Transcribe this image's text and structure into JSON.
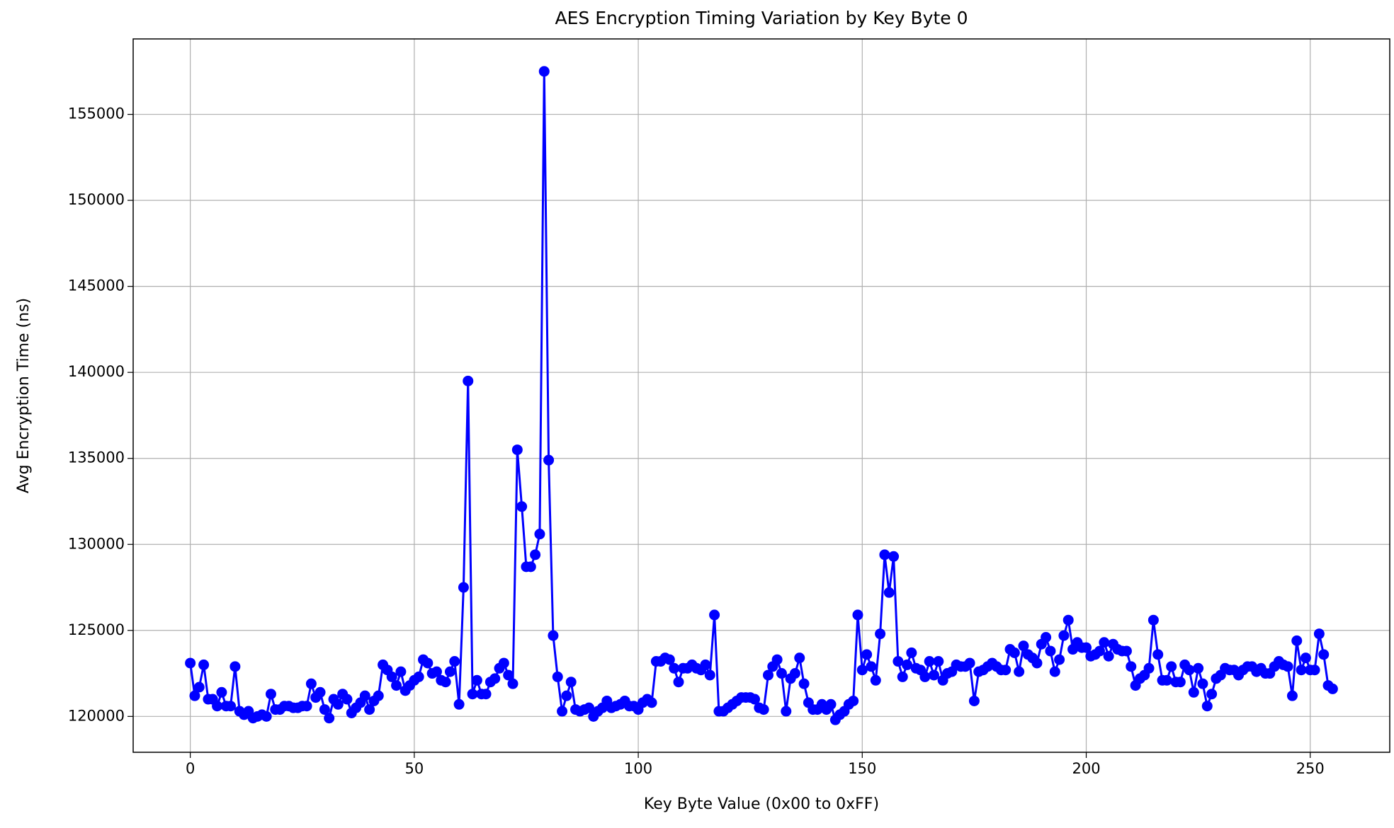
{
  "chart_data": {
    "type": "line",
    "title": "AES Encryption Timing Variation by Key Byte 0",
    "x_label": "Key Byte Value (0x00 to 0xFF)",
    "y_label": "Avg Encryption Time (ns)",
    "x": [
      0,
      1,
      2,
      3,
      4,
      5,
      6,
      7,
      8,
      9,
      10,
      11,
      12,
      13,
      14,
      15,
      16,
      17,
      18,
      19,
      20,
      21,
      22,
      23,
      24,
      25,
      26,
      27,
      28,
      29,
      30,
      31,
      32,
      33,
      34,
      35,
      36,
      37,
      38,
      39,
      40,
      41,
      42,
      43,
      44,
      45,
      46,
      47,
      48,
      49,
      50,
      51,
      52,
      53,
      54,
      55,
      56,
      57,
      58,
      59,
      60,
      61,
      62,
      63,
      64,
      65,
      66,
      67,
      68,
      69,
      70,
      71,
      72,
      73,
      74,
      75,
      76,
      77,
      78,
      79,
      80,
      81,
      82,
      83,
      84,
      85,
      86,
      87,
      88,
      89,
      90,
      91,
      92,
      93,
      94,
      95,
      96,
      97,
      98,
      99,
      100,
      101,
      102,
      103,
      104,
      105,
      106,
      107,
      108,
      109,
      110,
      111,
      112,
      113,
      114,
      115,
      116,
      117,
      118,
      119,
      120,
      121,
      122,
      123,
      124,
      125,
      126,
      127,
      128,
      129,
      130,
      131,
      132,
      133,
      134,
      135,
      136,
      137,
      138,
      139,
      140,
      141,
      142,
      143,
      144,
      145,
      146,
      147,
      148,
      149,
      150,
      151,
      152,
      153,
      154,
      155,
      156,
      157,
      158,
      159,
      160,
      161,
      162,
      163,
      164,
      165,
      166,
      167,
      168,
      169,
      170,
      171,
      172,
      173,
      174,
      175,
      176,
      177,
      178,
      179,
      180,
      181,
      182,
      183,
      184,
      185,
      186,
      187,
      188,
      189,
      190,
      191,
      192,
      193,
      194,
      195,
      196,
      197,
      198,
      199,
      200,
      201,
      202,
      203,
      204,
      205,
      206,
      207,
      208,
      209,
      210,
      211,
      212,
      213,
      214,
      215,
      216,
      217,
      218,
      219,
      220,
      221,
      222,
      223,
      224,
      225,
      226,
      227,
      228,
      229,
      230,
      231,
      232,
      233,
      234,
      235,
      236,
      237,
      238,
      239,
      240,
      241,
      242,
      243,
      244,
      245,
      246,
      247,
      248,
      249,
      250,
      251,
      252,
      253,
      254,
      255
    ],
    "series": [
      {
        "color": "#0000ff",
        "marker": "circle",
        "values": [
          123100,
          121200,
          121700,
          123000,
          121000,
          121000,
          120600,
          121400,
          120600,
          120600,
          122900,
          120300,
          120100,
          120300,
          119900,
          120000,
          120100,
          120000,
          121300,
          120400,
          120400,
          120600,
          120600,
          120500,
          120500,
          120600,
          120600,
          121900,
          121100,
          121400,
          120400,
          119900,
          121000,
          120700,
          121300,
          121000,
          120200,
          120500,
          120800,
          121200,
          120400,
          120900,
          121200,
          123000,
          122700,
          122300,
          121800,
          122600,
          121500,
          121800,
          122100,
          122300,
          123300,
          123100,
          122500,
          122600,
          122100,
          122000,
          122600,
          123200,
          120700,
          127500,
          139500,
          121300,
          122100,
          121300,
          121300,
          122000,
          122200,
          122800,
          123100,
          122400,
          121900,
          135500,
          132200,
          128700,
          128700,
          129400,
          130600,
          157500,
          134900,
          124700,
          122300,
          120300,
          121200,
          122000,
          120400,
          120300,
          120400,
          120500,
          120000,
          120300,
          120500,
          120900,
          120500,
          120600,
          120700,
          120900,
          120600,
          120600,
          120400,
          120800,
          121000,
          120800,
          123200,
          123200,
          123400,
          123300,
          122800,
          122000,
          122800,
          122800,
          123000,
          122800,
          122700,
          123000,
          122400,
          125900,
          120300,
          120300,
          120500,
          120700,
          120900,
          121100,
          121100,
          121100,
          121000,
          120500,
          120400,
          122400,
          122900,
          123300,
          122500,
          120300,
          122200,
          122500,
          123400,
          121900,
          120800,
          120400,
          120400,
          120700,
          120400,
          120700,
          119800,
          120100,
          120300,
          120700,
          120900,
          125900,
          122700,
          123600,
          122900,
          122100,
          124800,
          129400,
          127200,
          129300,
          123200,
          122300,
          123000,
          123700,
          122800,
          122700,
          122300,
          123200,
          122400,
          123200,
          122100,
          122500,
          122600,
          123000,
          122900,
          122900,
          123100,
          120900,
          122600,
          122700,
          122900,
          123100,
          122900,
          122700,
          122700,
          123900,
          123700,
          122600,
          124100,
          123600,
          123400,
          123100,
          124200,
          124600,
          123800,
          122600,
          123300,
          124700,
          125600,
          123900,
          124300,
          124000,
          124000,
          123500,
          123600,
          123800,
          124300,
          123500,
          124200,
          123900,
          123800,
          123800,
          122900,
          121800,
          122200,
          122400,
          122800,
          125600,
          123600,
          122100,
          122100,
          122900,
          122000,
          122000,
          123000,
          122700,
          121400,
          122800,
          121900,
          120600,
          121300,
          122200,
          122400,
          122800,
          122700,
          122700,
          122400,
          122700,
          122900,
          122900,
          122600,
          122800,
          122500,
          122500,
          122900,
          123200,
          123000,
          122900,
          121200,
          124400,
          122700,
          123400,
          122700,
          122700,
          124800,
          123600,
          121800,
          121600
        ]
      }
    ],
    "xlim": [
      -12.75,
      267.75
    ],
    "ylim": [
      117915,
      159385
    ],
    "xticks": [
      0,
      50,
      100,
      150,
      200,
      250
    ],
    "yticks": [
      120000,
      125000,
      130000,
      135000,
      140000,
      145000,
      150000,
      155000
    ],
    "grid": true
  }
}
